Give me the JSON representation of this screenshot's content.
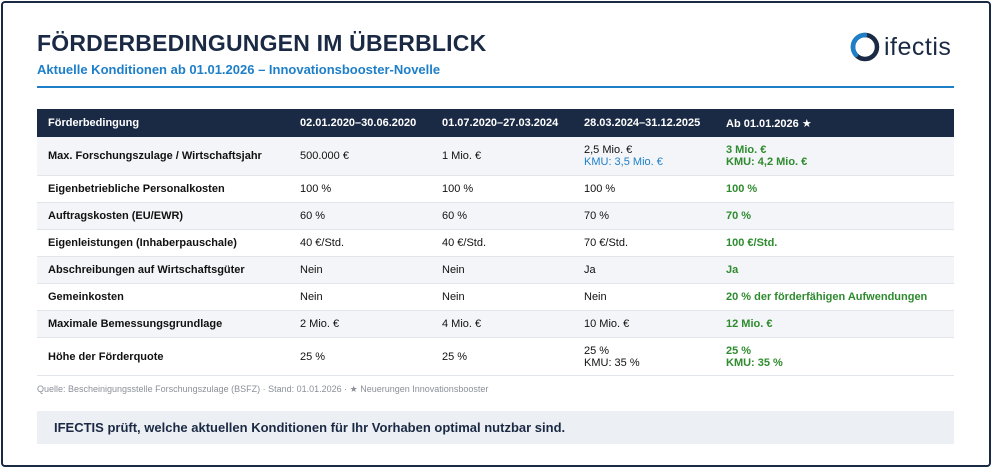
{
  "header": {
    "title": "FÖRDERBEDINGUNGEN IM ÜBERBLICK",
    "subtitle": "Aktuelle Konditionen ab 01.01.2026 – Innovationsbooster-Novelle",
    "logo_text": "ifectis"
  },
  "colors": {
    "navy": "#1b2a44",
    "accent_blue": "#1e7fc9",
    "highlight_green": "#2e8b2e",
    "row_shade": "#f3f5f8"
  },
  "table": {
    "headers": [
      "Förderbedingung",
      "02.01.2020–30.06.2020",
      "01.07.2020–27.03.2024",
      "28.03.2024–31.12.2025",
      "Ab 01.01.2026 ★"
    ],
    "rows": [
      {
        "label": "Max. Forschungszulage / Wirtschaftsjahr",
        "c1": "500.000 €",
        "c2": "1 Mio. €",
        "c3": "2,5 Mio. €",
        "c3b": "KMU: 3,5 Mio. €",
        "c4": "3 Mio. €",
        "c4b": "KMU: 4,2 Mio. €"
      },
      {
        "label": "Eigenbetriebliche Personalkosten",
        "c1": "100 %",
        "c2": "100 %",
        "c3": "100 %",
        "c4": "100 %"
      },
      {
        "label": "Auftragskosten (EU/EWR)",
        "c1": "60 %",
        "c2": "60 %",
        "c3": "70 %",
        "c4": "70 %"
      },
      {
        "label": "Eigenleistungen (Inhaberpauschale)",
        "c1": "40 €/Std.",
        "c2": "40 €/Std.",
        "c3": "70 €/Std.",
        "c4": "100 €/Std."
      },
      {
        "label": "Abschreibungen auf Wirtschaftsgüter",
        "c1": "Nein",
        "c2": "Nein",
        "c3": "Ja",
        "c4": "Ja"
      },
      {
        "label": "Gemeinkosten",
        "c1": "Nein",
        "c2": "Nein",
        "c3": "Nein",
        "c4": "20 % der förderfähigen Aufwendungen"
      },
      {
        "label": "Maximale Bemessungsgrundlage",
        "c1": "2 Mio. €",
        "c2": "4 Mio. €",
        "c3": "10 Mio. €",
        "c4": "12 Mio. €"
      },
      {
        "label": "Höhe der Förderquote",
        "c1": "25 %",
        "c2": "25 %",
        "c3": "25 %",
        "c3b": "KMU: 35 %",
        "c4": "25 %",
        "c4b": "KMU: 35 %"
      }
    ]
  },
  "footer": {
    "source": "Quelle: Bescheinigungsstelle Forschungszulage (BSFZ) · Stand: 01.01.2026 · ★ Neuerungen Innovationsbooster",
    "banner": "IFECTIS prüft, welche aktuellen Konditionen für Ihr Vorhaben optimal nutzbar sind."
  }
}
